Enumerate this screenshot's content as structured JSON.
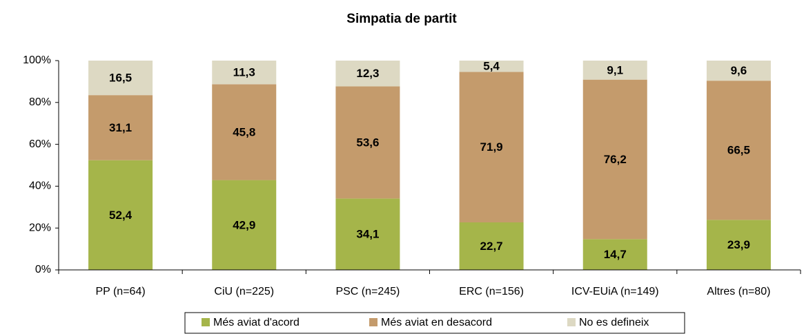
{
  "chart_data": {
    "type": "bar",
    "stacked": true,
    "title": "Simpatia de partit",
    "categories": [
      "PP (n=64)",
      "CiU (n=225)",
      "PSC (n=245)",
      "ERC (n=156)",
      "ICV-EUiA (n=149)",
      "Altres (n=80)"
    ],
    "series": [
      {
        "name": "Més aviat d'acord",
        "color": "#a5b54a",
        "values": [
          52.4,
          42.9,
          34.1,
          22.7,
          14.7,
          23.9
        ],
        "value_labels": [
          "52,4",
          "42,9",
          "34,1",
          "22,7",
          "14,7",
          "23,9"
        ]
      },
      {
        "name": "Més aviat en desacord",
        "color": "#c49b6c",
        "values": [
          31.1,
          45.8,
          53.6,
          71.9,
          76.2,
          66.5
        ],
        "value_labels": [
          "31,1",
          "45,8",
          "53,6",
          "71,9",
          "76,2",
          "66,5"
        ]
      },
      {
        "name": "No es defineix",
        "color": "#ddd9c3",
        "values": [
          16.5,
          11.3,
          12.3,
          5.4,
          9.1,
          9.6
        ],
        "value_labels": [
          "16,5",
          "11,3",
          "12,3",
          "5,4",
          "9,1",
          "9,6"
        ]
      }
    ],
    "ylim": [
      0,
      100
    ],
    "yticks": [
      {
        "value": 0,
        "label": "0%"
      },
      {
        "value": 20,
        "label": "20%"
      },
      {
        "value": 40,
        "label": "40%"
      },
      {
        "value": 60,
        "label": "60%"
      },
      {
        "value": 80,
        "label": "80%"
      },
      {
        "value": 100,
        "label": "100%"
      }
    ],
    "legend": "bottom"
  }
}
